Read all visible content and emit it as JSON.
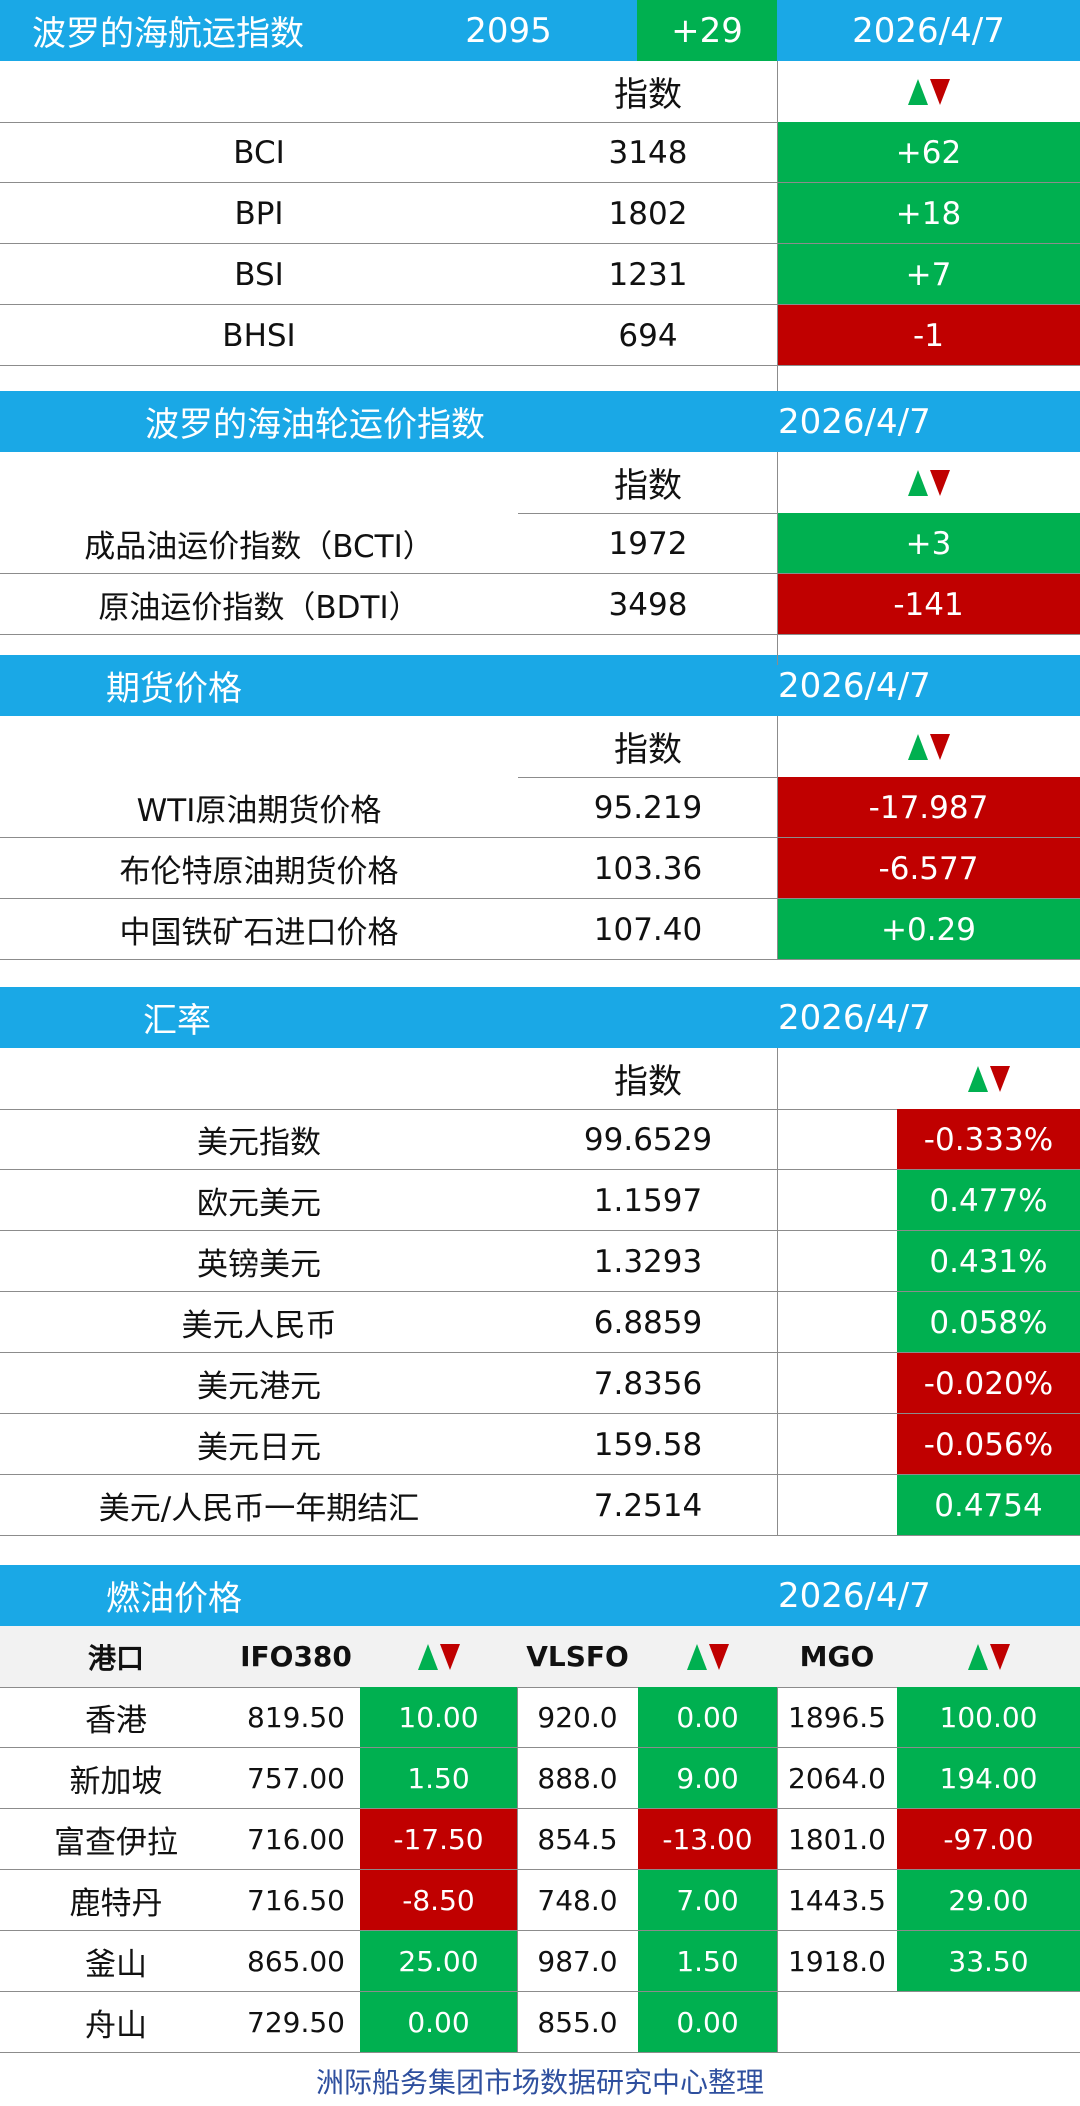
{
  "colors": {
    "blue_header": "#1aa8e6",
    "up": "#00b050",
    "down": "#c00000",
    "footer_text": "#2e4f9e"
  },
  "bdi": {
    "title": "波罗的海航运指数",
    "value": "2095",
    "change": "+29",
    "date": "2026/4/7",
    "col_index": "指数",
    "rows": [
      {
        "name": "BCI",
        "value": "3148",
        "change": "+62",
        "dir": "up"
      },
      {
        "name": "BPI",
        "value": "1802",
        "change": "+18",
        "dir": "up"
      },
      {
        "name": "BSI",
        "value": "1231",
        "change": "+7",
        "dir": "up"
      },
      {
        "name": "BHSI",
        "value": "694",
        "change": "-1",
        "dir": "down"
      }
    ]
  },
  "tanker": {
    "title": "波罗的海油轮运价指数",
    "date": "2026/4/7",
    "col_index": "指数",
    "rows": [
      {
        "name": "成品油运价指数（BCTI）",
        "value": "1972",
        "change": "+3",
        "dir": "up"
      },
      {
        "name": "原油运价指数（BDTI）",
        "value": "3498",
        "change": "-141",
        "dir": "down"
      }
    ]
  },
  "futures": {
    "title": "期货价格",
    "date": "2026/4/7",
    "col_index": "指数",
    "rows": [
      {
        "name": "WTI原油期货价格",
        "value": "95.219",
        "change": "-17.987",
        "dir": "down"
      },
      {
        "name": "布伦特原油期货价格",
        "value": "103.36",
        "change": "-6.577",
        "dir": "down"
      },
      {
        "name": "中国铁矿石进口价格",
        "value": "107.40",
        "change": "+0.29",
        "dir": "up"
      }
    ]
  },
  "fx": {
    "title": "汇率",
    "date": "2026/4/7",
    "col_index": "指数",
    "rows": [
      {
        "name": "美元指数",
        "value": "99.6529",
        "change": "-0.333%",
        "dir": "down"
      },
      {
        "name": "欧元美元",
        "value": "1.1597",
        "change": "0.477%",
        "dir": "up"
      },
      {
        "name": "英镑美元",
        "value": "1.3293",
        "change": "0.431%",
        "dir": "up"
      },
      {
        "name": "美元人民币",
        "value": "6.8859",
        "change": "0.058%",
        "dir": "up"
      },
      {
        "name": "美元港元",
        "value": "7.8356",
        "change": "-0.020%",
        "dir": "down"
      },
      {
        "name": "美元日元",
        "value": "159.58",
        "change": "-0.056%",
        "dir": "down"
      },
      {
        "name": "美元/人民币一年期结汇",
        "value": "7.2514",
        "change": "0.4754",
        "dir": "up"
      }
    ]
  },
  "fuel": {
    "title": "燃油价格",
    "date": "2026/4/7",
    "headers": {
      "port": "港口",
      "ifo": "IFO380",
      "vlsfo": "VLSFO",
      "mgo": "MGO"
    },
    "rows": [
      {
        "port": "香港",
        "ifo": "819.50",
        "ifo_chg": "10.00",
        "ifo_dir": "up",
        "vlsfo": "920.0",
        "vlsfo_chg": "0.00",
        "vlsfo_dir": "up",
        "mgo": "1896.5",
        "mgo_chg": "100.00",
        "mgo_dir": "up"
      },
      {
        "port": "新加坡",
        "ifo": "757.00",
        "ifo_chg": "1.50",
        "ifo_dir": "up",
        "vlsfo": "888.0",
        "vlsfo_chg": "9.00",
        "vlsfo_dir": "up",
        "mgo": "2064.0",
        "mgo_chg": "194.00",
        "mgo_dir": "up"
      },
      {
        "port": "富查伊拉",
        "ifo": "716.00",
        "ifo_chg": "-17.50",
        "ifo_dir": "down",
        "vlsfo": "854.5",
        "vlsfo_chg": "-13.00",
        "vlsfo_dir": "down",
        "mgo": "1801.0",
        "mgo_chg": "-97.00",
        "mgo_dir": "down"
      },
      {
        "port": "鹿特丹",
        "ifo": "716.50",
        "ifo_chg": "-8.50",
        "ifo_dir": "down",
        "vlsfo": "748.0",
        "vlsfo_chg": "7.00",
        "vlsfo_dir": "up",
        "mgo": "1443.5",
        "mgo_chg": "29.00",
        "mgo_dir": "up"
      },
      {
        "port": "釜山",
        "ifo": "865.00",
        "ifo_chg": "25.00",
        "ifo_dir": "up",
        "vlsfo": "987.0",
        "vlsfo_chg": "1.50",
        "vlsfo_dir": "up",
        "mgo": "1918.0",
        "mgo_chg": "33.50",
        "mgo_dir": "up"
      },
      {
        "port": "舟山",
        "ifo": "729.50",
        "ifo_chg": "0.00",
        "ifo_dir": "up",
        "vlsfo": "855.0",
        "vlsfo_chg": "0.00",
        "vlsfo_dir": "up",
        "mgo": "",
        "mgo_chg": "",
        "mgo_dir": ""
      }
    ]
  },
  "footer": "洲际船务集团市场数据研究中心整理"
}
